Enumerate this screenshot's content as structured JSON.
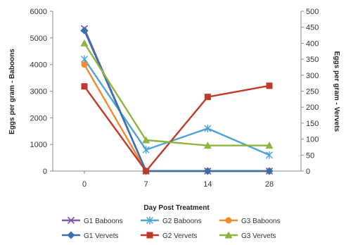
{
  "chart_data": {
    "type": "line",
    "categories": [
      "0",
      "7",
      "14",
      "28"
    ],
    "xlabel": "Day Post Treatment",
    "ylabel_left": "Eggs per gram - Baboons",
    "ylabel_right": "Eggs per gram - Vervets",
    "ylim_left": [
      0,
      6000
    ],
    "ylim_right": [
      0,
      500
    ],
    "yticks_left": [
      "0",
      "1000",
      "2000",
      "3000",
      "4000",
      "5000",
      "6000"
    ],
    "yticks_right": [
      "0",
      "50",
      "100",
      "150",
      "200",
      "250",
      "300",
      "350",
      "400",
      "450",
      "500"
    ],
    "grid": false,
    "legend_position": "bottom",
    "series": [
      {
        "name": "G1 Baboons",
        "axis": "left",
        "color": "#7b5ea7",
        "marker": "x",
        "values": [
          5350,
          0,
          0,
          0
        ]
      },
      {
        "name": "G2 Baboons",
        "axis": "left",
        "color": "#4ba3d6",
        "marker": "star",
        "values": [
          4200,
          800,
          1600,
          600
        ]
      },
      {
        "name": "G3 Baboons",
        "axis": "left",
        "color": "#f08a2e",
        "marker": "circle",
        "values": [
          4000,
          0,
          0,
          0
        ]
      },
      {
        "name": "G1 Vervets",
        "axis": "right",
        "color": "#3a6fae",
        "marker": "diamond",
        "values": [
          440,
          0,
          0,
          0
        ]
      },
      {
        "name": "G2 Vervets",
        "axis": "right",
        "color": "#c0392b",
        "marker": "square",
        "values": [
          265,
          0,
          232,
          267
        ]
      },
      {
        "name": "G3 Vervets",
        "axis": "right",
        "color": "#8db43e",
        "marker": "triangle",
        "values": [
          400,
          97,
          80,
          80
        ]
      }
    ]
  }
}
